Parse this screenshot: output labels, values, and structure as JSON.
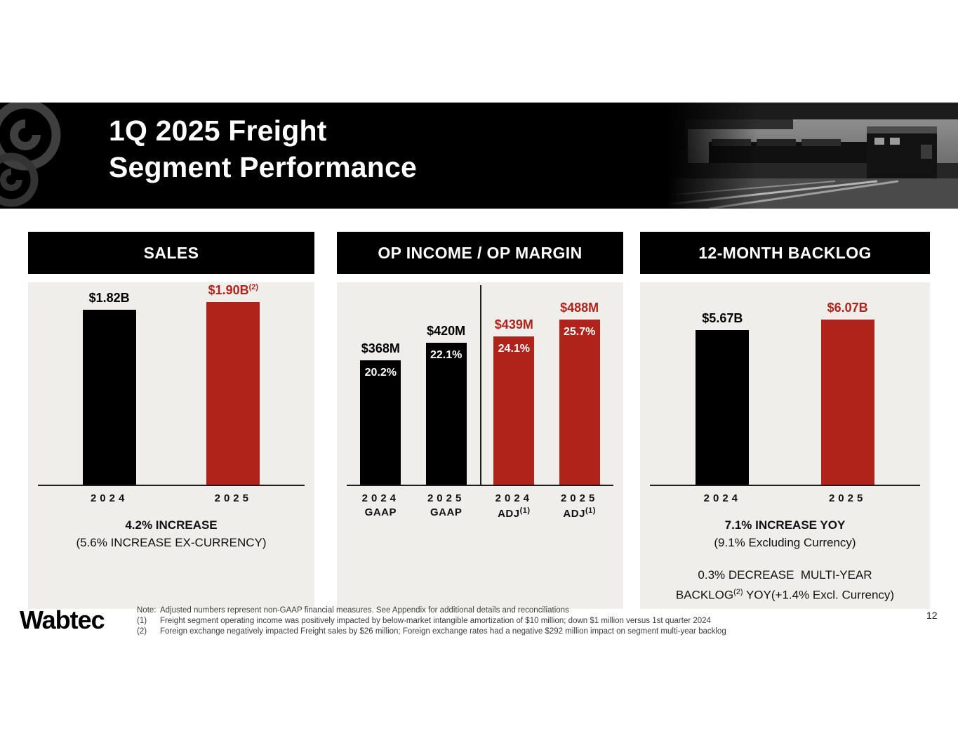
{
  "colors": {
    "black": "#000000",
    "red": "#b0231b",
    "panel_bg": "#f0eeea",
    "banner_bg": "#000000"
  },
  "header": {
    "title_line1": "1Q 2025 Freight",
    "title_line2": "Segment Performance"
  },
  "chart_data": [
    {
      "id": "sales",
      "type": "bar",
      "title": "SALES",
      "unit": "$B",
      "ylim": [
        0,
        2.0
      ],
      "bars": [
        {
          "category": "2024",
          "category_sub": "",
          "category_sub_sup": "",
          "value": 1.82,
          "label": "$1.82B",
          "label_sup": "",
          "inner_label": "",
          "color": "black",
          "group": 0
        },
        {
          "category": "2025",
          "category_sub": "",
          "category_sub_sup": "",
          "value": 1.9,
          "label": "$1.90B",
          "label_sup": "(2)",
          "inner_label": "",
          "color": "red",
          "group": 0
        }
      ],
      "summary": [
        {
          "pre": "4.2% INCREASE",
          "sup": "",
          "post": "",
          "bold": true
        },
        {
          "pre": "(5.6% INCREASE EX-CURRENCY)",
          "sup": "",
          "post": "",
          "bold": false
        }
      ],
      "summary2": []
    },
    {
      "id": "op-income",
      "type": "bar",
      "title": "OP INCOME / OP MARGIN",
      "unit": "$M and % margin",
      "ylim": [
        0,
        500
      ],
      "divider_between_groups": true,
      "bars": [
        {
          "category": "2024",
          "category_sub": "GAAP",
          "category_sub_sup": "",
          "value": 368,
          "label": "$368M",
          "label_sup": "",
          "inner_label": "20.2%",
          "color": "black",
          "group": 0
        },
        {
          "category": "2025",
          "category_sub": "GAAP",
          "category_sub_sup": "",
          "value": 420,
          "label": "$420M",
          "label_sup": "",
          "inner_label": "22.1%",
          "color": "black",
          "group": 0
        },
        {
          "category": "2024",
          "category_sub": "ADJ",
          "category_sub_sup": "(1)",
          "value": 439,
          "label": "$439M",
          "label_sup": "",
          "inner_label": "24.1%",
          "color": "red",
          "group": 1
        },
        {
          "category": "2025",
          "category_sub": "ADJ",
          "category_sub_sup": "(1)",
          "value": 488,
          "label": "$488M",
          "label_sup": "",
          "inner_label": "25.7%",
          "color": "red",
          "group": 1
        }
      ],
      "summary": [],
      "summary2": []
    },
    {
      "id": "backlog",
      "type": "bar",
      "title": "12-MONTH BACKLOG",
      "unit": "$B",
      "ylim": [
        0,
        6.5
      ],
      "bars": [
        {
          "category": "2024",
          "category_sub": "",
          "category_sub_sup": "",
          "value": 5.67,
          "label": "$5.67B",
          "label_sup": "",
          "inner_label": "",
          "color": "black",
          "group": 0
        },
        {
          "category": "2025",
          "category_sub": "",
          "category_sub_sup": "",
          "value": 6.07,
          "label": "$6.07B",
          "label_sup": "",
          "inner_label": "",
          "color": "red",
          "group": 0
        }
      ],
      "summary": [
        {
          "pre": "7.1% INCREASE YOY",
          "sup": "",
          "post": "",
          "bold": true
        },
        {
          "pre": "(9.1% Excluding Currency)",
          "sup": "",
          "post": "",
          "bold": false
        }
      ],
      "summary2": [
        {
          "pre": "0.3% DECREASE  MULTI-YEAR",
          "sup": "",
          "post": "",
          "bold": false
        },
        {
          "pre": "BACKLOG",
          "sup": "(2)",
          "post": " YOY(+1.4% Excl. Currency)",
          "bold": false
        }
      ]
    }
  ],
  "footer": {
    "logo_text": "Wabtec",
    "page_number": "12",
    "notes": [
      {
        "marker": "Note:",
        "text": "Adjusted numbers represent non-GAAP financial measures. See Appendix for additional details and reconciliations"
      },
      {
        "marker": "(1)",
        "text": "Freight segment operating income was positively impacted by below-market intangible amortization of $10 million; down $1 million versus 1st quarter 2024"
      },
      {
        "marker": "(2)",
        "text": "Foreign exchange negatively impacted Freight sales by $26 million; Foreign exchange rates had a negative $292 million impact on segment multi-year backlog"
      }
    ]
  }
}
